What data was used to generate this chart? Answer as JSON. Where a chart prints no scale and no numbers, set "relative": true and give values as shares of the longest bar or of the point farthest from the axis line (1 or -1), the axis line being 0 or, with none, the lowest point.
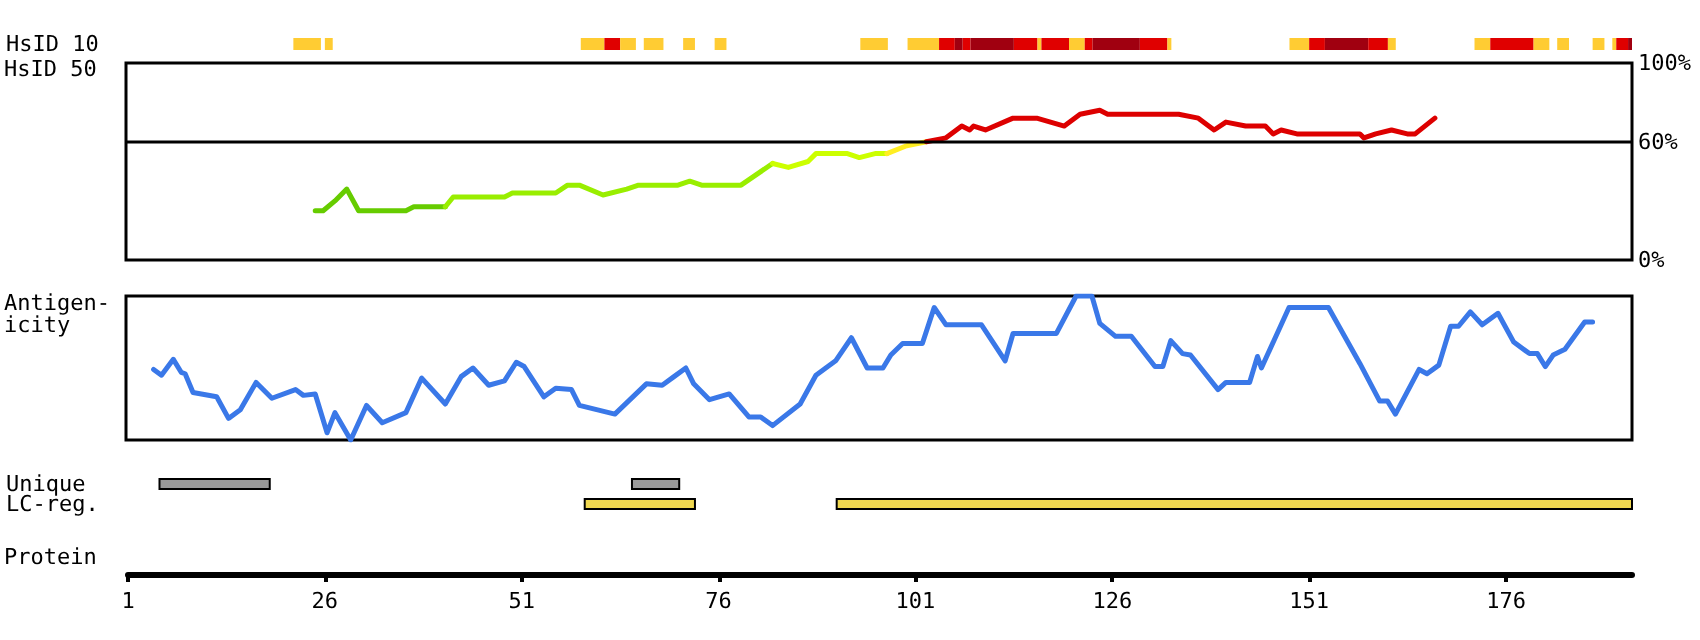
{
  "chart_data": [
    {
      "type": "bar",
      "orientation": "horizontal",
      "categories": [
        "HsID 10"
      ],
      "xlim": [
        1,
        192
      ],
      "tick_labels": "y",
      "series": [
        {
          "color": "#ffcc33",
          "values": [
            3.5
          ],
          "base": [
            22
          ]
        },
        {
          "color": "#ffcc33",
          "values": [
            1
          ],
          "base": [
            26
          ]
        },
        {
          "color": "#ffcc33",
          "values": [
            3
          ],
          "base": [
            58.5
          ]
        },
        {
          "color": "#e00000",
          "values": [
            2
          ],
          "base": [
            61.5
          ]
        },
        {
          "color": "#ffcc33",
          "values": [
            2
          ],
          "base": [
            63.5
          ]
        },
        {
          "color": "#ffcc33",
          "values": [
            2.5
          ],
          "base": [
            66.5
          ]
        },
        {
          "color": "#ffcc33",
          "values": [
            1.5
          ],
          "base": [
            71.5
          ]
        },
        {
          "color": "#ffcc33",
          "values": [
            1.5
          ],
          "base": [
            75.5
          ]
        },
        {
          "color": "#ffcc33",
          "values": [
            3.5
          ],
          "base": [
            94
          ]
        },
        {
          "color": "#ffcc33",
          "values": [
            4
          ],
          "base": [
            100
          ]
        },
        {
          "color": "#e00000",
          "values": [
            2
          ],
          "base": [
            104
          ]
        },
        {
          "color": "#a00010",
          "values": [
            1
          ],
          "base": [
            106
          ]
        },
        {
          "color": "#e00000",
          "values": [
            1
          ],
          "base": [
            107
          ]
        },
        {
          "color": "#a00010",
          "values": [
            5.5
          ],
          "base": [
            108
          ]
        },
        {
          "color": "#e00000",
          "values": [
            3
          ],
          "base": [
            113.5
          ]
        },
        {
          "color": "#ffcc33",
          "values": [
            0.5
          ],
          "base": [
            116.5
          ]
        },
        {
          "color": "#e00000",
          "values": [
            3.5
          ],
          "base": [
            117
          ]
        },
        {
          "color": "#ffcc33",
          "values": [
            2
          ],
          "base": [
            120.5
          ]
        },
        {
          "color": "#e00000",
          "values": [
            1
          ],
          "base": [
            122.5
          ]
        },
        {
          "color": "#a00010",
          "values": [
            6
          ],
          "base": [
            123.5
          ]
        },
        {
          "color": "#e00000",
          "values": [
            3.5
          ],
          "base": [
            129.5
          ]
        },
        {
          "color": "#ffcc33",
          "values": [
            0.5
          ],
          "base": [
            133
          ]
        },
        {
          "color": "#ffcc33",
          "values": [
            2.5
          ],
          "base": [
            148.5
          ]
        },
        {
          "color": "#e00000",
          "values": [
            2
          ],
          "base": [
            151
          ]
        },
        {
          "color": "#a00010",
          "values": [
            5.5
          ],
          "base": [
            153
          ]
        },
        {
          "color": "#e00000",
          "values": [
            2.5
          ],
          "base": [
            158.5
          ]
        },
        {
          "color": "#ffcc33",
          "values": [
            1
          ],
          "base": [
            161
          ]
        },
        {
          "color": "#ffcc33",
          "values": [
            2
          ],
          "base": [
            172
          ]
        },
        {
          "color": "#e00000",
          "values": [
            5.5
          ],
          "base": [
            174
          ]
        },
        {
          "color": "#ffcc33",
          "values": [
            2
          ],
          "base": [
            179.5
          ]
        },
        {
          "color": "#ffcc33",
          "values": [
            1.5
          ],
          "base": [
            182.5
          ]
        },
        {
          "color": "#ffcc33",
          "values": [
            1.5
          ],
          "base": [
            187
          ]
        },
        {
          "color": "#ffcc33",
          "values": [
            0.5
          ],
          "base": [
            189.5
          ]
        },
        {
          "color": "#e00000",
          "values": [
            1.5
          ],
          "base": [
            190
          ]
        },
        {
          "color": "#a00010",
          "values": [
            0.5
          ],
          "base": [
            191.5
          ]
        }
      ]
    },
    {
      "type": "line",
      "ylabel": "HsID 50",
      "xlim": [
        1,
        192
      ],
      "ylim": [
        0,
        100
      ],
      "yticks": [
        {
          "value": 0,
          "label": "0%"
        },
        {
          "value": 60,
          "label": "60%"
        },
        {
          "value": 100,
          "label": "100%"
        }
      ],
      "tick_labels": "y",
      "ref_lines": [
        {
          "axis": "y",
          "value": 60,
          "color": "#000000"
        }
      ],
      "series": [
        {
          "color": "#66cc00",
          "x": [
            25,
            26,
            27.5,
            29,
            30.5,
            36.5,
            37.5,
            41.5
          ],
          "values": [
            25,
            25,
            30,
            36,
            25,
            25,
            27,
            27
          ]
        },
        {
          "color": "#99ee00",
          "x": [
            41.5,
            42.5,
            49,
            50,
            55.5,
            57,
            58.5,
            61.5,
            64.5,
            66,
            71,
            72.5,
            74,
            79,
            83
          ],
          "values": [
            27,
            32,
            32,
            34,
            34,
            38,
            38,
            33,
            36,
            38,
            38,
            40,
            38,
            38,
            49
          ]
        },
        {
          "color": "#ccff00",
          "x": [
            83,
            85,
            87.5,
            88.5,
            92.5,
            94,
            96,
            97.5
          ],
          "values": [
            49,
            47,
            50,
            54,
            54,
            52,
            54,
            54
          ]
        },
        {
          "color": "#ffee22",
          "x": [
            97.5,
            100,
            102.5
          ],
          "values": [
            54,
            58,
            60
          ]
        },
        {
          "color": "#dd0000",
          "x": [
            102.5,
            105,
            107,
            108,
            108.5,
            110,
            113.5,
            116.5,
            120,
            122,
            124.5,
            125.5,
            134.5,
            137,
            139,
            140.5,
            143,
            145.5,
            146.5,
            147.5,
            149.5,
            157.5,
            158,
            159.5,
            161.5,
            163.5,
            164.5,
            167
          ],
          "values": [
            60,
            62,
            68,
            66,
            68,
            66,
            72,
            72,
            68,
            74,
            76,
            74,
            74,
            72,
            66,
            70,
            68,
            68,
            64,
            66,
            64,
            64,
            62,
            64,
            66,
            64,
            64,
            72
          ]
        }
      ]
    },
    {
      "type": "line",
      "ylabel": "Antigen-\nicity",
      "relative": true,
      "xlim": [
        1,
        192
      ],
      "tick_labels": false,
      "series": [
        {
          "color": "#3a78e8",
          "x": [
            4.5,
            5.5,
            7,
            8,
            8.5,
            9.5,
            12.5,
            14,
            15.5,
            17.5,
            19.5,
            22.5,
            23.5,
            25,
            26.5,
            27.5,
            29.5,
            31.5,
            33.5,
            36.5,
            38.5,
            41.5,
            43.5,
            45,
            47,
            49,
            50.5,
            51.5,
            54,
            55.5,
            57.5,
            58.5,
            63,
            67,
            69,
            70.5,
            72,
            73,
            75,
            77.5,
            80,
            81.5,
            83,
            86.5,
            88.5,
            91,
            93,
            95,
            97,
            98,
            99.5,
            102,
            103.5,
            105,
            109.5,
            112.5,
            113.5,
            119,
            121.5,
            123.5,
            124.5,
            126.5,
            128.5,
            131.5,
            132.5,
            133.5,
            135,
            136,
            139.5,
            140.5,
            143.5,
            144.5,
            145,
            148.5,
            153.5,
            157.5,
            160,
            161,
            162,
            165,
            166,
            167.5,
            169,
            170,
            171.5,
            173,
            175,
            177,
            179,
            180,
            181,
            182,
            183.5,
            186,
            187
          ],
          "values": [
            0.49,
            0.45,
            0.56,
            0.47,
            0.46,
            0.33,
            0.3,
            0.15,
            0.21,
            0.4,
            0.29,
            0.35,
            0.31,
            0.32,
            0.05,
            0.19,
            0,
            0.24,
            0.12,
            0.19,
            0.43,
            0.25,
            0.44,
            0.5,
            0.38,
            0.41,
            0.54,
            0.51,
            0.3,
            0.36,
            0.35,
            0.24,
            0.18,
            0.39,
            0.38,
            0.44,
            0.5,
            0.39,
            0.28,
            0.32,
            0.16,
            0.16,
            0.1,
            0.25,
            0.45,
            0.55,
            0.71,
            0.5,
            0.5,
            0.59,
            0.67,
            0.67,
            0.92,
            0.8,
            0.8,
            0.55,
            0.74,
            0.74,
            1,
            1,
            0.81,
            0.72,
            0.72,
            0.51,
            0.51,
            0.69,
            0.6,
            0.59,
            0.35,
            0.4,
            0.4,
            0.58,
            0.5,
            0.92,
            0.92,
            0.53,
            0.27,
            0.27,
            0.18,
            0.49,
            0.46,
            0.52,
            0.79,
            0.79,
            0.89,
            0.8,
            0.88,
            0.68,
            0.6,
            0.6,
            0.51,
            0.59,
            0.63,
            0.82,
            0.82
          ]
        }
      ]
    },
    {
      "type": "bar",
      "orientation": "horizontal",
      "categories": [
        "Unique",
        "LC-reg."
      ],
      "xlabel": "Protein",
      "xlim": [
        1,
        192
      ],
      "xticks": [
        1,
        26,
        51,
        76,
        101,
        126,
        151,
        176
      ],
      "series": [
        {
          "color": "#999999",
          "values": [
            14,
            null
          ],
          "base": [
            5,
            null
          ]
        },
        {
          "color": "#999999",
          "values": [
            6,
            null
          ],
          "base": [
            65,
            null
          ]
        },
        {
          "color": "#f0d850",
          "values": [
            null,
            14
          ],
          "base": [
            null,
            59
          ]
        },
        {
          "color": "#f0d850",
          "values": [
            null,
            101
          ],
          "base": [
            null,
            91
          ]
        }
      ]
    }
  ]
}
